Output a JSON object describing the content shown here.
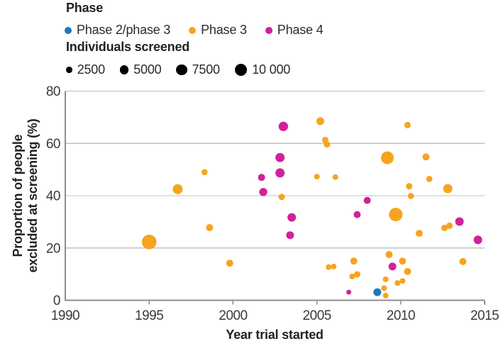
{
  "colors": {
    "phase23": "#1C79BE",
    "phase3": "#F6A41F",
    "phase4": "#D2219B",
    "axis": "#8C8C8C",
    "grid": "#C0C0C0",
    "size_dot": "#000000",
    "text": "#222222",
    "tick_text": "#3A3A3A"
  },
  "legend": {
    "phase_title": "Phase",
    "phase_items": [
      {
        "label": "Phase 2/phase 3",
        "color_key": "phase23"
      },
      {
        "label": "Phase 3",
        "color_key": "phase3"
      },
      {
        "label": "Phase 4",
        "color_key": "phase4"
      }
    ],
    "size_title": "Individuals screened",
    "size_items": [
      {
        "label": "2500",
        "value": 2500
      },
      {
        "label": "5000",
        "value": 5000
      },
      {
        "label": "7500",
        "value": 7500
      },
      {
        "label": "10 000",
        "value": 10000
      }
    ]
  },
  "chart_data": {
    "type": "scatter",
    "title": "",
    "xlabel": "Year trial started",
    "ylabel_lines": [
      "Proportion of people",
      "excluded at screening (%)"
    ],
    "xlim": [
      1990,
      2015
    ],
    "ylim": [
      0,
      80
    ],
    "xticks": [
      1990,
      1995,
      2000,
      2005,
      2010,
      2015
    ],
    "yticks": [
      0,
      20,
      40,
      60,
      80
    ],
    "grid": "horizontal",
    "legend_position": "top-left",
    "bubble_size_legend_values": [
      2500,
      5000,
      7500,
      10000
    ],
    "series": [
      {
        "name": "Phase 3",
        "color_key": "phase3",
        "points": [
          {
            "x": 1995.0,
            "y": 22.3,
            "screened": 14000
          },
          {
            "x": 1996.7,
            "y": 42.5,
            "screened": 6500
          },
          {
            "x": 1998.3,
            "y": 49.0,
            "screened": 2500
          },
          {
            "x": 1998.6,
            "y": 27.8,
            "screened": 3300
          },
          {
            "x": 1999.8,
            "y": 14.2,
            "screened": 3300
          },
          {
            "x": 2002.9,
            "y": 39.5,
            "screened": 2700
          },
          {
            "x": 2005.0,
            "y": 47.3,
            "screened": 2100
          },
          {
            "x": 2005.2,
            "y": 68.5,
            "screened": 4000
          },
          {
            "x": 2005.5,
            "y": 61.3,
            "screened": 2700
          },
          {
            "x": 2005.6,
            "y": 59.6,
            "screened": 2700
          },
          {
            "x": 2005.7,
            "y": 12.7,
            "screened": 2100
          },
          {
            "x": 2006.0,
            "y": 12.9,
            "screened": 2100
          },
          {
            "x": 2006.1,
            "y": 47.1,
            "screened": 2100
          },
          {
            "x": 2007.1,
            "y": 9.1,
            "screened": 2100
          },
          {
            "x": 2007.2,
            "y": 15.0,
            "screened": 3300
          },
          {
            "x": 2007.4,
            "y": 9.9,
            "screened": 2700
          },
          {
            "x": 2009.0,
            "y": 4.6,
            "screened": 2100
          },
          {
            "x": 2009.1,
            "y": 1.8,
            "screened": 2100
          },
          {
            "x": 2009.1,
            "y": 8.0,
            "screened": 2100
          },
          {
            "x": 2009.2,
            "y": 54.5,
            "screened": 10700
          },
          {
            "x": 2009.3,
            "y": 17.5,
            "screened": 3300
          },
          {
            "x": 2009.7,
            "y": 32.8,
            "screened": 12000
          },
          {
            "x": 2009.8,
            "y": 6.6,
            "screened": 2100
          },
          {
            "x": 2010.1,
            "y": 7.4,
            "screened": 2100
          },
          {
            "x": 2010.1,
            "y": 15.0,
            "screened": 3300
          },
          {
            "x": 2010.4,
            "y": 11.0,
            "screened": 3300
          },
          {
            "x": 2010.4,
            "y": 67.0,
            "screened": 2700
          },
          {
            "x": 2010.5,
            "y": 43.6,
            "screened": 2700
          },
          {
            "x": 2010.6,
            "y": 39.9,
            "screened": 2500
          },
          {
            "x": 2011.1,
            "y": 25.6,
            "screened": 3300
          },
          {
            "x": 2011.5,
            "y": 54.8,
            "screened": 3300
          },
          {
            "x": 2011.7,
            "y": 46.4,
            "screened": 2500
          },
          {
            "x": 2012.6,
            "y": 27.7,
            "screened": 2700
          },
          {
            "x": 2012.8,
            "y": 42.7,
            "screened": 5600
          },
          {
            "x": 2012.9,
            "y": 28.5,
            "screened": 2700
          },
          {
            "x": 2013.7,
            "y": 14.8,
            "screened": 3300
          }
        ]
      },
      {
        "name": "Phase 4",
        "color_key": "phase4",
        "points": [
          {
            "x": 2001.7,
            "y": 47.0,
            "screened": 3300
          },
          {
            "x": 2001.8,
            "y": 41.4,
            "screened": 4300
          },
          {
            "x": 2002.8,
            "y": 54.6,
            "screened": 5600
          },
          {
            "x": 2002.8,
            "y": 48.7,
            "screened": 5600
          },
          {
            "x": 2003.0,
            "y": 66.5,
            "screened": 5900
          },
          {
            "x": 2003.4,
            "y": 24.9,
            "screened": 4000
          },
          {
            "x": 2003.5,
            "y": 31.7,
            "screened": 4800
          },
          {
            "x": 2006.9,
            "y": 3.1,
            "screened": 1600
          },
          {
            "x": 2007.4,
            "y": 32.8,
            "screened": 3300
          },
          {
            "x": 2008.0,
            "y": 38.2,
            "screened": 3300
          },
          {
            "x": 2009.5,
            "y": 12.9,
            "screened": 4000
          },
          {
            "x": 2013.5,
            "y": 30.1,
            "screened": 4800
          },
          {
            "x": 2014.6,
            "y": 23.1,
            "screened": 4800
          }
        ]
      },
      {
        "name": "Phase 2/phase 3",
        "color_key": "phase23",
        "points": [
          {
            "x": 2008.6,
            "y": 3.1,
            "screened": 4000
          }
        ]
      }
    ]
  }
}
